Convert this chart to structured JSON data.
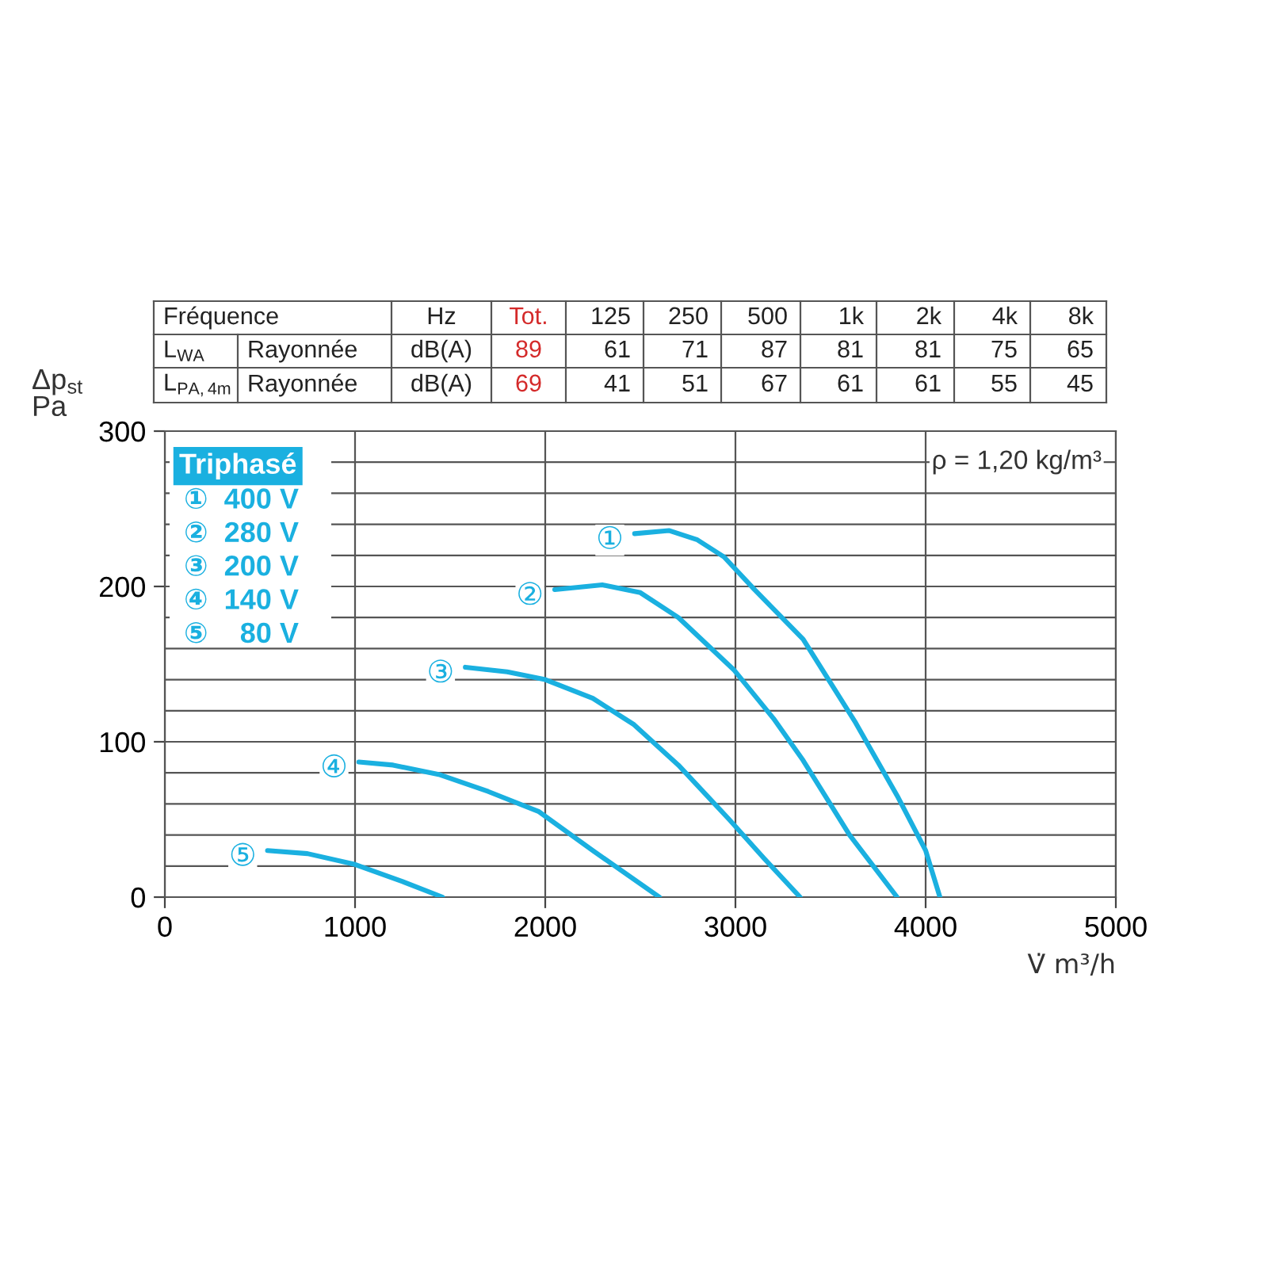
{
  "chart_data": {
    "type": "line",
    "xlabel": "V̇ m³/h",
    "ylabel": "Δp$_{st}$\nPa",
    "legend_title": "Triphasé",
    "xlim": [
      0,
      5000
    ],
    "xticks": [
      0,
      1000,
      2000,
      3000,
      4000,
      5000
    ],
    "ylim": [
      0,
      300
    ],
    "yticks": [
      0,
      {
        "value": 20,
        "label": null
      },
      {
        "value": 40,
        "label": null
      },
      {
        "value": 60,
        "label": null
      },
      {
        "value": 80,
        "label": null
      },
      100,
      {
        "value": 120,
        "label": null
      },
      {
        "value": 140,
        "label": null
      },
      {
        "value": 160,
        "label": null
      },
      {
        "value": 180,
        "label": null
      },
      200,
      {
        "value": 220,
        "label": null
      },
      {
        "value": 240,
        "label": null
      },
      {
        "value": 260,
        "label": null
      },
      {
        "value": 280,
        "label": null
      },
      300
    ],
    "grid": true,
    "marker": "none",
    "line_style": "solid",
    "series": [
      {
        "name": "①",
        "color": "#1ab0e0",
        "x": [
          2470,
          2650,
          2800,
          2940,
          3100,
          3356,
          3633,
          3856,
          4000,
          4075
        ],
        "values": [
          234,
          236,
          230,
          219,
          198,
          166,
          112,
          64,
          30,
          0
        ]
      },
      {
        "name": "②",
        "color": "#1ab0e0",
        "x": [
          2050,
          2300,
          2500,
          2700,
          2994,
          3200,
          3356,
          3600,
          3850
        ],
        "values": [
          198,
          201,
          196,
          180,
          146,
          115,
          88,
          40,
          0
        ]
      },
      {
        "name": "③",
        "color": "#1ab0e0",
        "x": [
          1580,
          1800,
          2000,
          2250,
          2467,
          2700,
          2967,
          3150,
          3340
        ],
        "values": [
          148,
          145,
          140,
          128,
          111,
          85,
          50,
          25,
          0
        ]
      },
      {
        "name": "④",
        "color": "#1ab0e0",
        "x": [
          1020,
          1200,
          1440,
          1700,
          1967,
          2250,
          2600
        ],
        "values": [
          87,
          85,
          79,
          68,
          55,
          30,
          0
        ]
      },
      {
        "name": "⑤",
        "color": "#1ab0e0",
        "x": [
          540,
          750,
          1000,
          1250,
          1460
        ],
        "values": [
          30,
          28,
          21,
          10,
          0
        ]
      }
    ],
    "annotations": [
      "Fréquence",
      "Hz",
      "Tot.",
      "125",
      "250",
      "500",
      "1k",
      "2k",
      "4k",
      "8k",
      "L$_{WA}$",
      "Rayonnée",
      "dB(A)",
      "89",
      "61",
      "71",
      "87",
      "81",
      "81",
      "75",
      "65",
      "L$_{PA,4m}$",
      "Rayonnée",
      "dB(A)",
      "69",
      "41",
      "51",
      "67",
      "61",
      "61",
      "55",
      "45",
      "①  400 V",
      "②  280 V",
      "③  200 V",
      "④  140 V",
      "⑤    80 V",
      "ρ = 1,20 kg/m³"
    ]
  }
}
